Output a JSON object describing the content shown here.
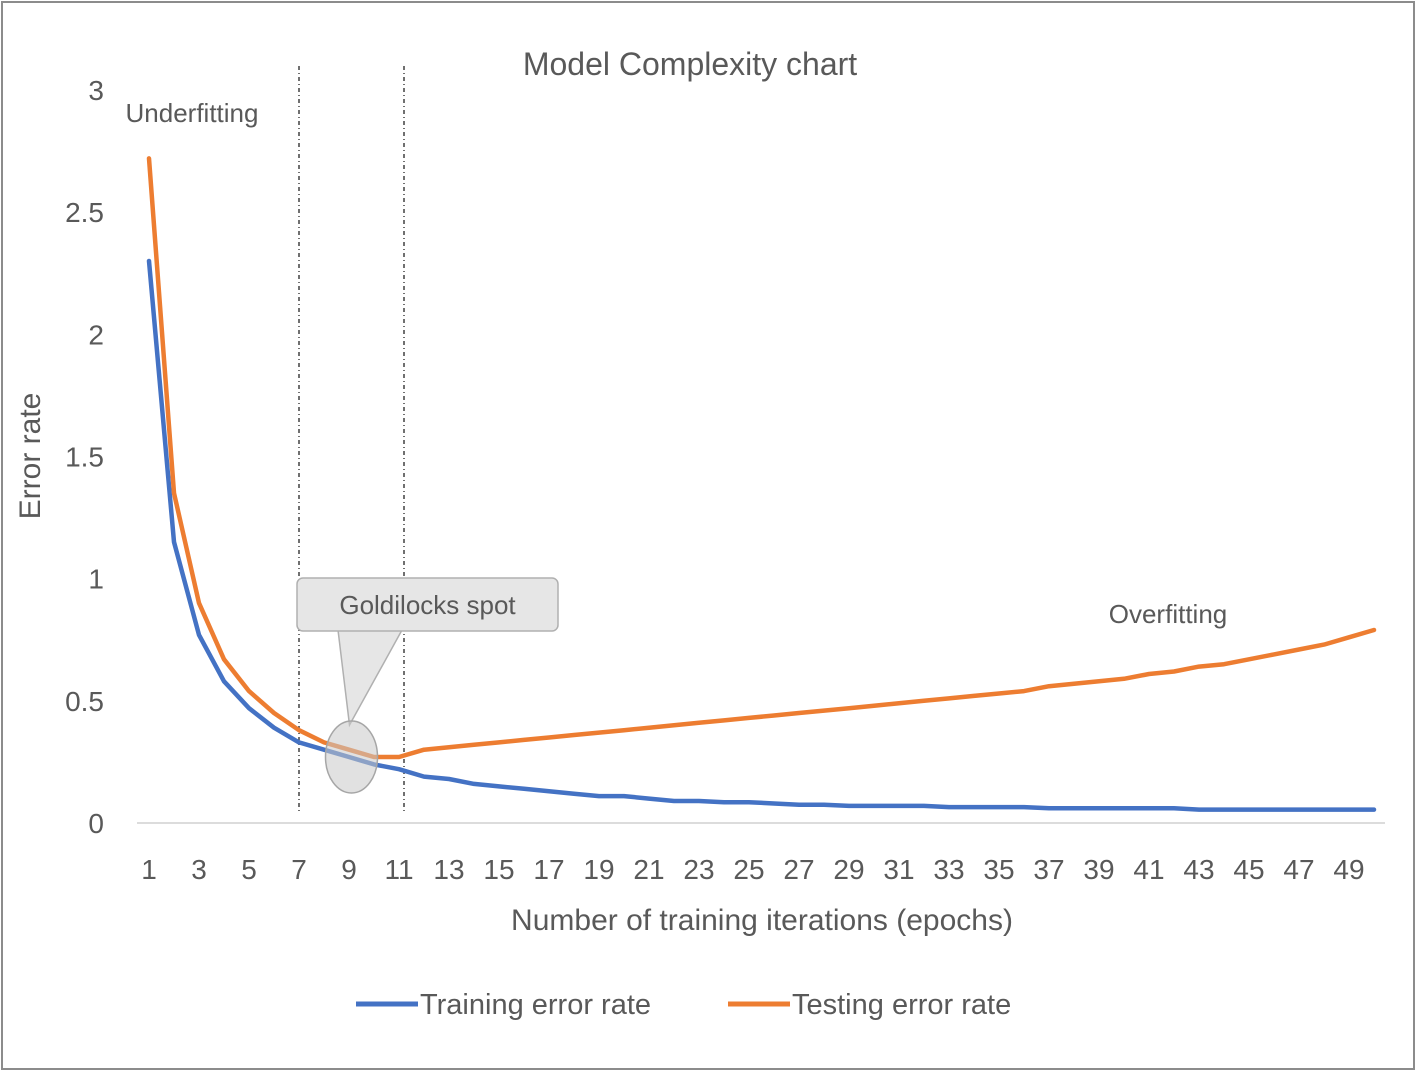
{
  "chart_data": {
    "type": "line",
    "title": "Model Complexity chart",
    "xlabel": "Number of training iterations (epochs)",
    "ylabel": "Error rate",
    "x": [
      1,
      2,
      3,
      4,
      5,
      6,
      7,
      8,
      9,
      10,
      11,
      12,
      13,
      14,
      15,
      16,
      17,
      18,
      19,
      20,
      21,
      22,
      23,
      24,
      25,
      26,
      27,
      28,
      29,
      30,
      31,
      32,
      33,
      34,
      35,
      36,
      37,
      38,
      39,
      40,
      41,
      42,
      43,
      44,
      45,
      46,
      47,
      48,
      49,
      50
    ],
    "x_tick_labels": [
      "1",
      "3",
      "5",
      "7",
      "9",
      "11",
      "13",
      "15",
      "17",
      "19",
      "21",
      "23",
      "25",
      "27",
      "29",
      "31",
      "33",
      "35",
      "37",
      "39",
      "41",
      "43",
      "45",
      "47",
      "49"
    ],
    "y_tick_labels": [
      "0",
      "0.5",
      "1",
      "1.5",
      "2",
      "2.5",
      "3"
    ],
    "ylim": [
      0,
      3
    ],
    "grid": false,
    "legend": "bottom",
    "series": [
      {
        "name": "Training error rate",
        "color": "#4472c4",
        "values": [
          2.3,
          1.15,
          0.77,
          0.58,
          0.47,
          0.39,
          0.33,
          0.3,
          0.27,
          0.24,
          0.22,
          0.19,
          0.18,
          0.16,
          0.15,
          0.14,
          0.13,
          0.12,
          0.11,
          0.11,
          0.1,
          0.09,
          0.09,
          0.085,
          0.085,
          0.08,
          0.075,
          0.075,
          0.07,
          0.07,
          0.07,
          0.07,
          0.065,
          0.065,
          0.065,
          0.065,
          0.06,
          0.06,
          0.06,
          0.06,
          0.06,
          0.06,
          0.055,
          0.055,
          0.055,
          0.055,
          0.055,
          0.055,
          0.055,
          0.055
        ]
      },
      {
        "name": "Testing error rate",
        "color": "#ed7d31",
        "values": [
          2.72,
          1.35,
          0.9,
          0.67,
          0.54,
          0.45,
          0.38,
          0.33,
          0.3,
          0.27,
          0.27,
          0.3,
          0.31,
          0.32,
          0.33,
          0.34,
          0.35,
          0.36,
          0.37,
          0.38,
          0.39,
          0.4,
          0.41,
          0.42,
          0.43,
          0.44,
          0.45,
          0.46,
          0.47,
          0.48,
          0.49,
          0.5,
          0.51,
          0.52,
          0.53,
          0.54,
          0.56,
          0.57,
          0.58,
          0.59,
          0.61,
          0.62,
          0.64,
          0.65,
          0.67,
          0.69,
          0.71,
          0.73,
          0.76,
          0.79
        ]
      }
    ],
    "vertical_markers_x": [
      7,
      11.2
    ],
    "annotations": {
      "underfitting": "Underfitting",
      "overfitting": "Overfitting",
      "callout": "Goldilocks spot",
      "goldilocks_x": 9.1,
      "goldilocks_y": 0.27
    }
  }
}
